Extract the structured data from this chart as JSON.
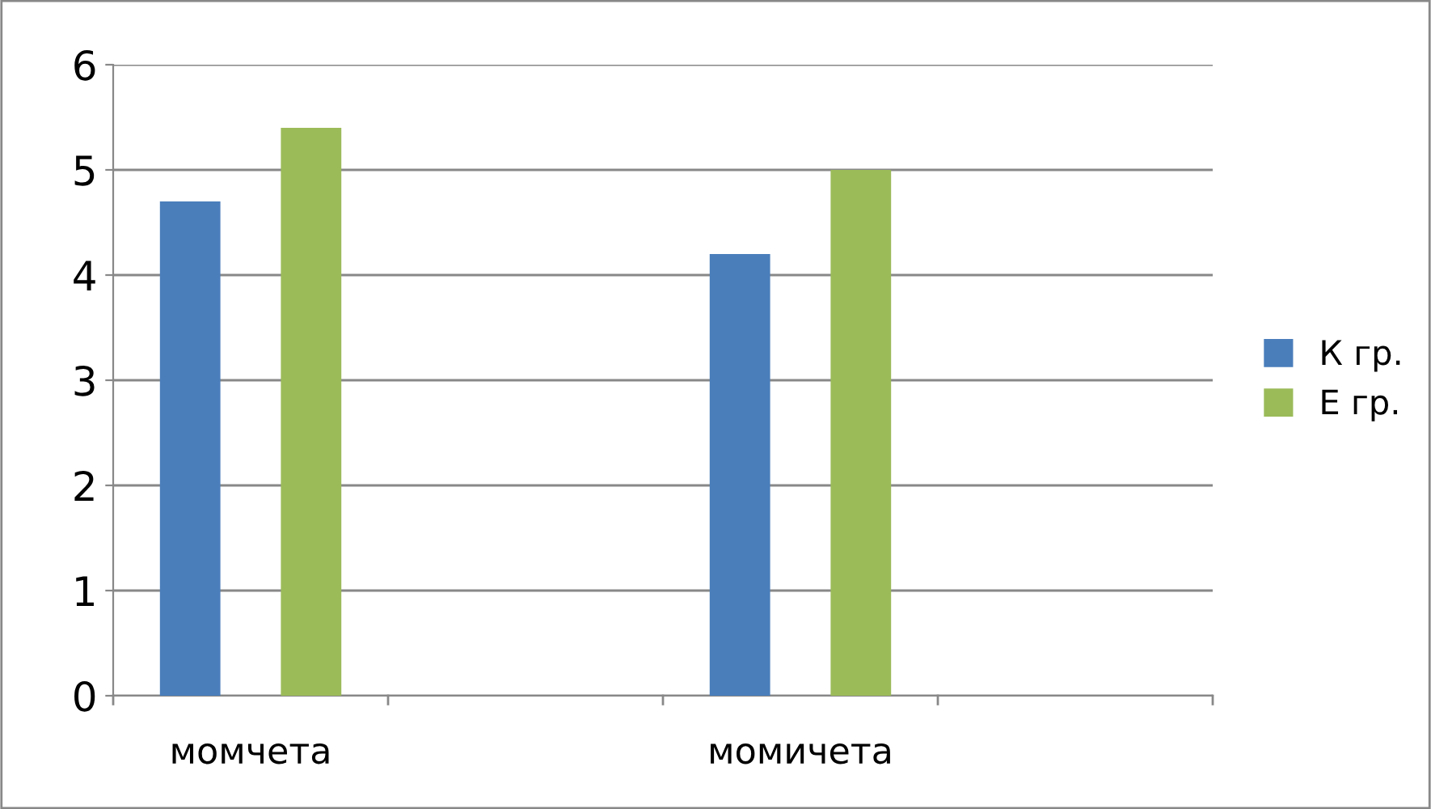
{
  "chart_data": {
    "type": "bar",
    "categories": [
      "момчета",
      null,
      "момичета",
      null
    ],
    "series": [
      {
        "name": "К гр.",
        "color": "#4a7ebb",
        "values": [
          4.7,
          null,
          4.2,
          null
        ]
      },
      {
        "name": "Е гр.",
        "color": "#9bbb59",
        "values": [
          5.4,
          null,
          5.0,
          null
        ]
      }
    ],
    "ylim": [
      0,
      6
    ],
    "yticks": [
      0,
      1,
      2,
      3,
      4,
      5,
      6
    ],
    "grid": "y",
    "legend": "right"
  }
}
